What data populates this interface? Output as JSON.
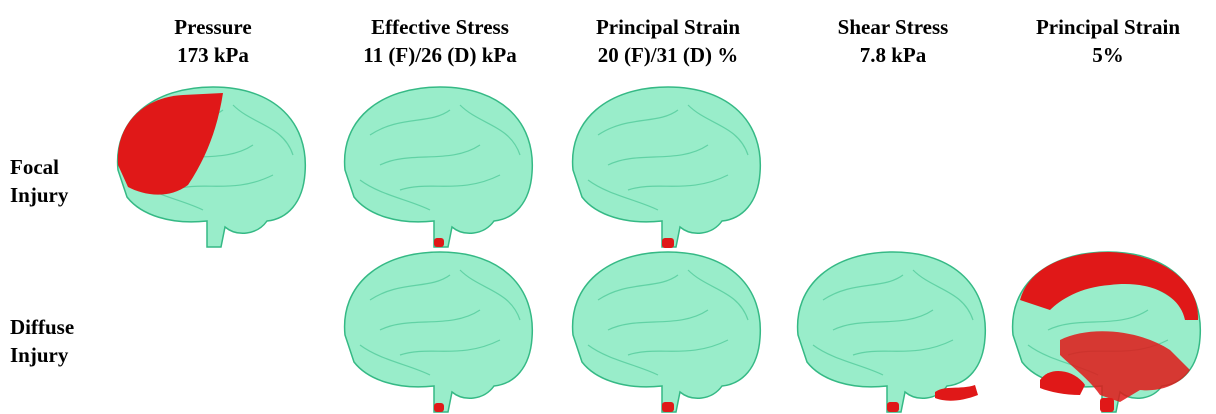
{
  "columns": [
    {
      "line1": "Pressure",
      "line2": "173 kPa"
    },
    {
      "line1": "Effective Stress",
      "line2": "11 (F)/26 (D) kPa"
    },
    {
      "line1": "Principal Strain",
      "line2": "20 (F)/31 (D) %"
    },
    {
      "line1": "Shear Stress",
      "line2": "7.8 kPa"
    },
    {
      "line1": "Principal Strain",
      "line2": "5%"
    }
  ],
  "rows": [
    {
      "line1": "Focal",
      "line2": "Injury"
    },
    {
      "line1": "Diffuse",
      "line2": "Injury"
    }
  ]
}
